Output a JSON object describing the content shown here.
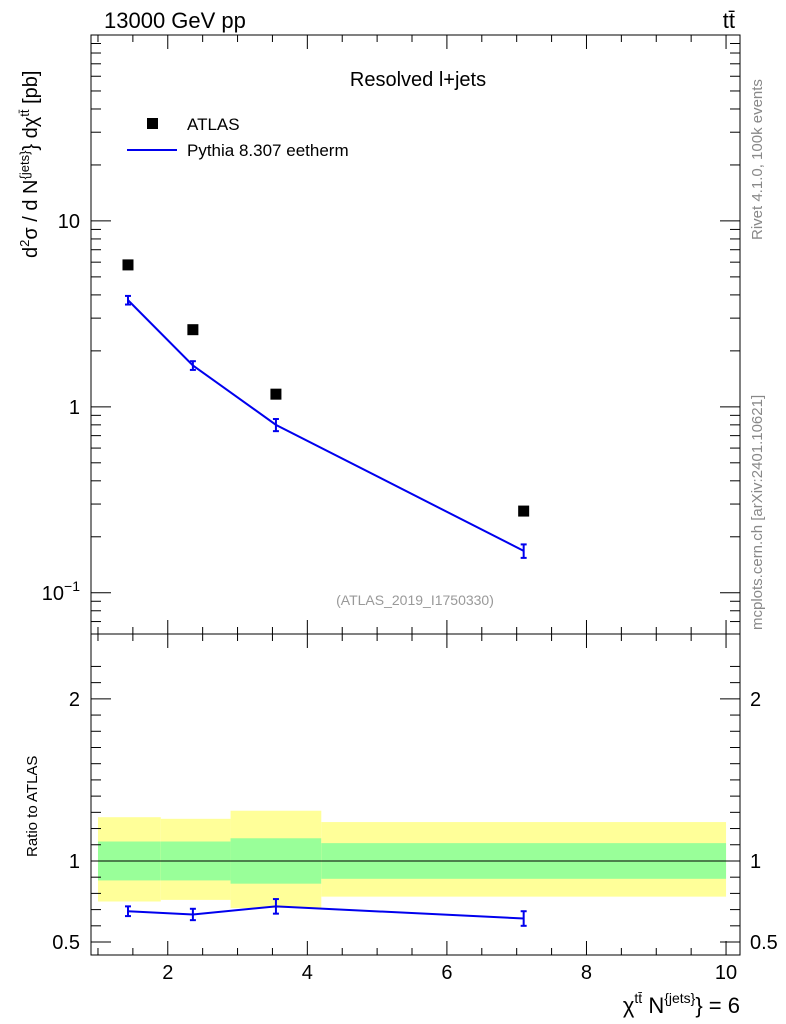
{
  "header": {
    "left": "13000 GeV pp",
    "right": "tt̄"
  },
  "side_labels": {
    "rivet": "Rivet 4.1.0,  100k events",
    "source": "mcplots.cern.ch [arXiv:2401.10621]"
  },
  "chart_data": {
    "type": "scatter",
    "title": "Resolved l+jets",
    "analysis_label": "(ATLAS_2019_I1750330)",
    "xlabel": "χ^{tt̄} N^{jets} = 6",
    "ylabel": "d²σ / d N^{jets} dχ^{tt̄} [pb]",
    "xlim": [
      0.9,
      10.2
    ],
    "ylim": [
      0.06,
      100
    ],
    "yscale": "log",
    "x_ticks": [
      "2",
      "4",
      "6",
      "8",
      "10"
    ],
    "y_ticks": [
      "10^-1",
      "1",
      "10"
    ],
    "bins": [
      [
        1.0,
        1.9
      ],
      [
        1.9,
        2.9
      ],
      [
        2.9,
        4.2
      ],
      [
        4.2,
        10.0
      ]
    ],
    "legend": [
      "ATLAS",
      "Pythia 8.307 eetherm"
    ],
    "series": [
      {
        "name": "ATLAS",
        "style": "markers",
        "color": "#000000",
        "x": [
          1.43,
          2.36,
          3.55,
          7.1
        ],
        "y": [
          5.8,
          2.6,
          1.17,
          0.275
        ]
      },
      {
        "name": "Pythia 8.307 eetherm",
        "style": "line",
        "color": "#0000ee",
        "x": [
          1.43,
          2.36,
          3.55,
          7.1
        ],
        "y": [
          3.75,
          1.67,
          0.8,
          0.168
        ],
        "err": [
          0.2,
          0.09,
          0.06,
          0.014
        ]
      }
    ],
    "ratio": {
      "ylabel": "Ratio to ATLAS",
      "ylim": [
        0.42,
        2.4
      ],
      "y_ticks": [
        "0.5",
        "1",
        "2"
      ],
      "mc_values": [
        0.69,
        0.67,
        0.72,
        0.645
      ],
      "mc_err": [
        0.03,
        0.035,
        0.045,
        0.045
      ],
      "band_green": [
        [
          0.88,
          1.12
        ],
        [
          0.88,
          1.12
        ],
        [
          0.86,
          1.14
        ],
        [
          0.89,
          1.11
        ]
      ],
      "band_yellow": [
        [
          0.75,
          1.27
        ],
        [
          0.76,
          1.26
        ],
        [
          0.71,
          1.31
        ],
        [
          0.78,
          1.24
        ]
      ],
      "colors": {
        "green": "#99ff99",
        "yellow": "#ffff99"
      }
    }
  }
}
